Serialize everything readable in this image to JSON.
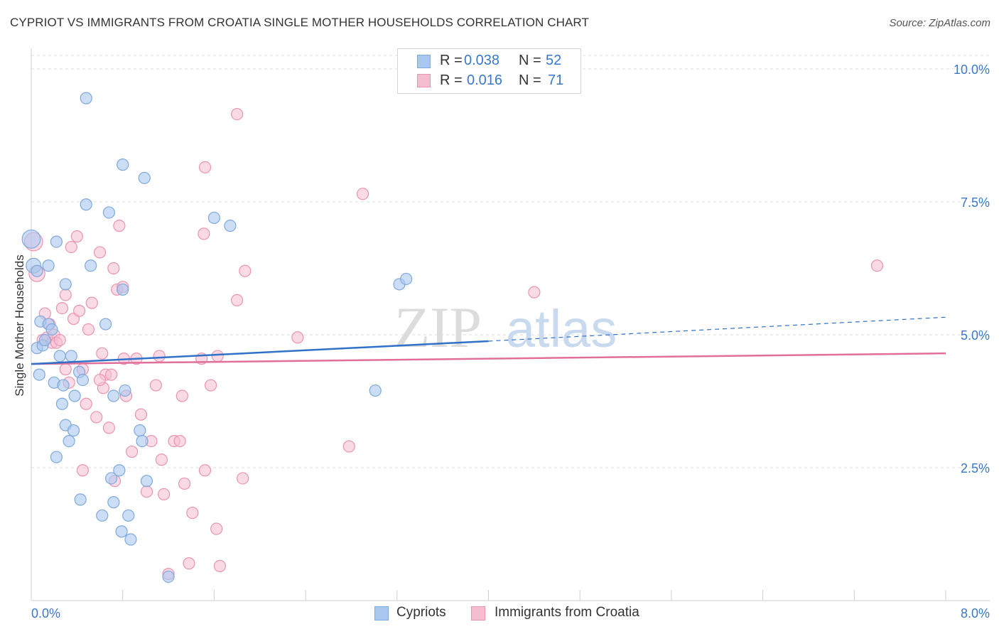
{
  "title": "CYPRIOT VS IMMIGRANTS FROM CROATIA SINGLE MOTHER HOUSEHOLDS CORRELATION CHART",
  "source": "Source: ZipAtlas.com",
  "watermark": {
    "zip": "ZIP",
    "atlas": "atlas"
  },
  "colors": {
    "blue_fill": "#a9c8f0",
    "blue_stroke": "#7fa8dc",
    "blue_line": "#2f72c8",
    "pink_fill": "#f6bcd0",
    "pink_stroke": "#eb94b2",
    "pink_line": "#e0709a",
    "tick_label": "#3a78c9",
    "grid": "#dddddd"
  },
  "legend": {
    "rows": [
      {
        "r_label": "R =",
        "r_value": "0.038",
        "n_label": "N =",
        "n_value": "52"
      },
      {
        "r_label": "R =",
        "r_value": "0.016",
        "n_label": "N =",
        "n_value": "71"
      }
    ]
  },
  "bottom_legend": {
    "series1": "Cypriots",
    "series2": "Immigrants from Croatia"
  },
  "chart_data": {
    "type": "scatter",
    "xlabel": "",
    "ylabel": "Single Mother Households",
    "xlim": [
      0,
      8.0
    ],
    "ylim": [
      0,
      10.0
    ],
    "x_tick_labels": {
      "min": "0.0%",
      "max": "8.0%"
    },
    "y_ticks": [
      {
        "value": 2.5,
        "label": "2.5%"
      },
      {
        "value": 5.0,
        "label": "5.0%"
      },
      {
        "value": 7.5,
        "label": "7.5%"
      },
      {
        "value": 10.0,
        "label": "10.0%"
      }
    ],
    "x_minor_ticks": [
      0.8,
      1.6,
      2.4,
      3.2,
      4.0,
      4.8,
      5.6,
      6.4,
      7.2,
      8.0
    ],
    "series": [
      {
        "name": "Cypriots",
        "color": "#a9c8f0",
        "trend": {
          "x0": 0.0,
          "y0": 4.45,
          "x1": 4.0,
          "y1": 4.88,
          "dash_x1": 8.0,
          "dash_y1": 5.33
        },
        "points": [
          {
            "x": 0.0,
            "y": 6.8,
            "s": 1.6
          },
          {
            "x": 0.02,
            "y": 6.3,
            "s": 1.3
          },
          {
            "x": 0.05,
            "y": 4.75,
            "s": 1
          },
          {
            "x": 0.07,
            "y": 4.25,
            "s": 1
          },
          {
            "x": 0.08,
            "y": 5.25,
            "s": 1
          },
          {
            "x": 0.1,
            "y": 4.8,
            "s": 1
          },
          {
            "x": 0.12,
            "y": 4.9,
            "s": 1
          },
          {
            "x": 0.15,
            "y": 5.2,
            "s": 1
          },
          {
            "x": 0.15,
            "y": 6.3,
            "s": 1
          },
          {
            "x": 0.18,
            "y": 5.1,
            "s": 1
          },
          {
            "x": 0.2,
            "y": 4.1,
            "s": 1
          },
          {
            "x": 0.22,
            "y": 2.7,
            "s": 1
          },
          {
            "x": 0.22,
            "y": 6.75,
            "s": 1
          },
          {
            "x": 0.25,
            "y": 4.6,
            "s": 1
          },
          {
            "x": 0.27,
            "y": 3.7,
            "s": 1
          },
          {
            "x": 0.28,
            "y": 4.05,
            "s": 1
          },
          {
            "x": 0.3,
            "y": 5.95,
            "s": 1
          },
          {
            "x": 0.3,
            "y": 3.3,
            "s": 1
          },
          {
            "x": 0.33,
            "y": 3.0,
            "s": 1
          },
          {
            "x": 0.35,
            "y": 4.6,
            "s": 1
          },
          {
            "x": 0.37,
            "y": 3.2,
            "s": 1
          },
          {
            "x": 0.38,
            "y": 3.85,
            "s": 1
          },
          {
            "x": 0.42,
            "y": 4.3,
            "s": 1
          },
          {
            "x": 0.43,
            "y": 1.9,
            "s": 1
          },
          {
            "x": 0.45,
            "y": 4.15,
            "s": 1
          },
          {
            "x": 0.48,
            "y": 7.45,
            "s": 1
          },
          {
            "x": 0.48,
            "y": 9.45,
            "s": 1
          },
          {
            "x": 0.52,
            "y": 6.3,
            "s": 1
          },
          {
            "x": 0.62,
            "y": 1.6,
            "s": 1
          },
          {
            "x": 0.65,
            "y": 5.2,
            "s": 1
          },
          {
            "x": 0.68,
            "y": 7.3,
            "s": 1
          },
          {
            "x": 0.7,
            "y": 2.3,
            "s": 1
          },
          {
            "x": 0.72,
            "y": 1.85,
            "s": 1
          },
          {
            "x": 0.72,
            "y": 3.85,
            "s": 1
          },
          {
            "x": 0.77,
            "y": 2.45,
            "s": 1
          },
          {
            "x": 0.79,
            "y": 1.3,
            "s": 1
          },
          {
            "x": 0.8,
            "y": 8.2,
            "s": 1
          },
          {
            "x": 0.8,
            "y": 5.85,
            "s": 1
          },
          {
            "x": 0.82,
            "y": 3.95,
            "s": 1
          },
          {
            "x": 0.85,
            "y": 1.6,
            "s": 1
          },
          {
            "x": 0.87,
            "y": 1.15,
            "s": 1
          },
          {
            "x": 0.95,
            "y": 3.2,
            "s": 1
          },
          {
            "x": 0.97,
            "y": 3.0,
            "s": 1
          },
          {
            "x": 0.99,
            "y": 7.95,
            "s": 1
          },
          {
            "x": 1.01,
            "y": 2.25,
            "s": 1
          },
          {
            "x": 1.2,
            "y": 0.45,
            "s": 1
          },
          {
            "x": 1.6,
            "y": 7.2,
            "s": 1
          },
          {
            "x": 1.74,
            "y": 7.05,
            "s": 1
          },
          {
            "x": 3.01,
            "y": 3.95,
            "s": 1
          },
          {
            "x": 3.22,
            "y": 5.95,
            "s": 1
          },
          {
            "x": 3.28,
            "y": 6.05,
            "s": 1
          },
          {
            "x": 0.05,
            "y": 6.2,
            "s": 1
          }
        ]
      },
      {
        "name": "Immigrants from Croatia",
        "color": "#f6bcd0",
        "trend": {
          "x0": 0.0,
          "y0": 4.45,
          "x1": 8.0,
          "y1": 4.65
        },
        "points": [
          {
            "x": 0.02,
            "y": 6.75,
            "s": 1.6
          },
          {
            "x": 0.05,
            "y": 6.15,
            "s": 1.4
          },
          {
            "x": 0.1,
            "y": 4.9,
            "s": 1
          },
          {
            "x": 0.12,
            "y": 5.4,
            "s": 1
          },
          {
            "x": 0.14,
            "y": 4.95,
            "s": 1
          },
          {
            "x": 0.16,
            "y": 5.2,
            "s": 1
          },
          {
            "x": 0.18,
            "y": 4.85,
            "s": 1
          },
          {
            "x": 0.2,
            "y": 5.0,
            "s": 1
          },
          {
            "x": 0.22,
            "y": 4.85,
            "s": 1
          },
          {
            "x": 0.25,
            "y": 4.9,
            "s": 1
          },
          {
            "x": 0.27,
            "y": 5.5,
            "s": 1
          },
          {
            "x": 0.3,
            "y": 5.75,
            "s": 1
          },
          {
            "x": 0.3,
            "y": 4.35,
            "s": 1
          },
          {
            "x": 0.33,
            "y": 4.1,
            "s": 1
          },
          {
            "x": 0.35,
            "y": 6.65,
            "s": 1
          },
          {
            "x": 0.37,
            "y": 5.3,
            "s": 1
          },
          {
            "x": 0.4,
            "y": 6.85,
            "s": 1
          },
          {
            "x": 0.42,
            "y": 5.45,
            "s": 1
          },
          {
            "x": 0.45,
            "y": 4.35,
            "s": 1
          },
          {
            "x": 0.45,
            "y": 2.45,
            "s": 1
          },
          {
            "x": 0.48,
            "y": 3.7,
            "s": 1
          },
          {
            "x": 0.5,
            "y": 5.1,
            "s": 1
          },
          {
            "x": 0.53,
            "y": 5.6,
            "s": 1
          },
          {
            "x": 0.57,
            "y": 3.45,
            "s": 1
          },
          {
            "x": 0.6,
            "y": 6.55,
            "s": 1
          },
          {
            "x": 0.62,
            "y": 4.65,
            "s": 1
          },
          {
            "x": 0.63,
            "y": 4.0,
            "s": 1
          },
          {
            "x": 0.65,
            "y": 4.25,
            "s": 1
          },
          {
            "x": 0.68,
            "y": 3.25,
            "s": 1
          },
          {
            "x": 0.7,
            "y": 4.25,
            "s": 1
          },
          {
            "x": 0.72,
            "y": 6.25,
            "s": 1
          },
          {
            "x": 0.73,
            "y": 2.25,
            "s": 1
          },
          {
            "x": 0.75,
            "y": 5.85,
            "s": 1
          },
          {
            "x": 0.77,
            "y": 7.05,
            "s": 1
          },
          {
            "x": 0.8,
            "y": 5.9,
            "s": 1
          },
          {
            "x": 0.81,
            "y": 4.55,
            "s": 1
          },
          {
            "x": 0.83,
            "y": 3.85,
            "s": 1
          },
          {
            "x": 0.88,
            "y": 2.8,
            "s": 1
          },
          {
            "x": 0.92,
            "y": 4.55,
            "s": 1
          },
          {
            "x": 0.96,
            "y": 3.5,
            "s": 1
          },
          {
            "x": 1.01,
            "y": 2.05,
            "s": 1
          },
          {
            "x": 1.05,
            "y": 3.0,
            "s": 1
          },
          {
            "x": 1.09,
            "y": 4.05,
            "s": 1
          },
          {
            "x": 1.12,
            "y": 4.6,
            "s": 1
          },
          {
            "x": 1.14,
            "y": 2.65,
            "s": 1
          },
          {
            "x": 1.16,
            "y": 2.0,
            "s": 1
          },
          {
            "x": 1.2,
            "y": 0.5,
            "s": 1
          },
          {
            "x": 1.25,
            "y": 3.0,
            "s": 1
          },
          {
            "x": 1.3,
            "y": 3.0,
            "s": 1
          },
          {
            "x": 1.32,
            "y": 3.85,
            "s": 1
          },
          {
            "x": 1.34,
            "y": 2.2,
            "s": 1
          },
          {
            "x": 1.38,
            "y": 0.7,
            "s": 1
          },
          {
            "x": 1.41,
            "y": 1.65,
            "s": 1
          },
          {
            "x": 1.49,
            "y": 4.55,
            "s": 1
          },
          {
            "x": 1.52,
            "y": 2.45,
            "s": 1
          },
          {
            "x": 1.52,
            "y": 8.15,
            "s": 1
          },
          {
            "x": 1.51,
            "y": 6.9,
            "s": 1
          },
          {
            "x": 1.57,
            "y": 4.05,
            "s": 1
          },
          {
            "x": 1.62,
            "y": 1.35,
            "s": 1
          },
          {
            "x": 1.63,
            "y": 4.6,
            "s": 1
          },
          {
            "x": 1.65,
            "y": 0.65,
            "s": 1
          },
          {
            "x": 1.8,
            "y": 9.15,
            "s": 1
          },
          {
            "x": 1.8,
            "y": 5.65,
            "s": 1
          },
          {
            "x": 1.85,
            "y": 2.3,
            "s": 1
          },
          {
            "x": 1.87,
            "y": 6.2,
            "s": 1
          },
          {
            "x": 2.33,
            "y": 4.95,
            "s": 1
          },
          {
            "x": 2.78,
            "y": 2.9,
            "s": 1
          },
          {
            "x": 2.9,
            "y": 7.65,
            "s": 1
          },
          {
            "x": 4.4,
            "y": 5.8,
            "s": 1
          },
          {
            "x": 7.4,
            "y": 6.3,
            "s": 1
          },
          {
            "x": 0.6,
            "y": 4.15,
            "s": 1
          }
        ]
      }
    ]
  }
}
